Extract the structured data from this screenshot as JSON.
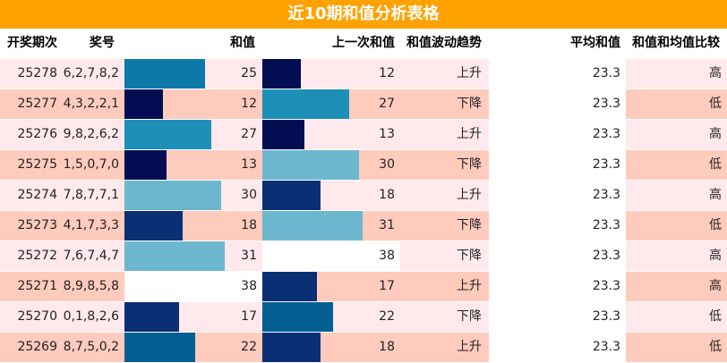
{
  "title": "近10期和值分析表格",
  "headers": {
    "issue": "开奖期次",
    "digits": "奖号",
    "sum": "和值",
    "prev_sum": "上一次和值",
    "trend": "和值波动趋势",
    "avg": "平均和值",
    "compare": "和值和均值比较"
  },
  "colors": {
    "title_bg": "#ffa200",
    "row_light": "#ffe9ec",
    "row_dark": "#ffcbbd",
    "blank": "#ffffff",
    "bar_scale": [
      "#030d52",
      "#0b2f74",
      "#035f92",
      "#0d79a8",
      "#1e8fb6",
      "#6db7ce"
    ]
  },
  "rows": [
    {
      "issue": "25278",
      "digits": "6,2,7,8,2",
      "sum": "25",
      "prev_sum": "12",
      "trend": "上升",
      "avg": "23.3",
      "compare": "高"
    },
    {
      "issue": "25277",
      "digits": "4,3,2,2,1",
      "sum": "12",
      "prev_sum": "27",
      "trend": "下降",
      "avg": "23.3",
      "compare": "低"
    },
    {
      "issue": "25276",
      "digits": "9,8,2,6,2",
      "sum": "27",
      "prev_sum": "13",
      "trend": "上升",
      "avg": "23.3",
      "compare": "高"
    },
    {
      "issue": "25275",
      "digits": "1,5,0,7,0",
      "sum": "13",
      "prev_sum": "30",
      "trend": "下降",
      "avg": "23.3",
      "compare": "低"
    },
    {
      "issue": "25274",
      "digits": "7,8,7,7,1",
      "sum": "30",
      "prev_sum": "18",
      "trend": "上升",
      "avg": "23.3",
      "compare": "高"
    },
    {
      "issue": "25273",
      "digits": "4,1,7,3,3",
      "sum": "18",
      "prev_sum": "31",
      "trend": "下降",
      "avg": "23.3",
      "compare": "低"
    },
    {
      "issue": "25272",
      "digits": "7,6,7,4,7",
      "sum": "31",
      "prev_sum": "38",
      "trend": "下降",
      "avg": "23.3",
      "compare": "高"
    },
    {
      "issue": "25271",
      "digits": "8,9,8,5,8",
      "sum": "38",
      "prev_sum": "17",
      "trend": "上升",
      "avg": "23.3",
      "compare": "高"
    },
    {
      "issue": "25270",
      "digits": "0,1,8,2,6",
      "sum": "17",
      "prev_sum": "22",
      "trend": "下降",
      "avg": "23.3",
      "compare": "低"
    },
    {
      "issue": "25269",
      "digits": "8,7,5,0,2",
      "sum": "22",
      "prev_sum": "18",
      "trend": "上升",
      "avg": "23.3",
      "compare": "低"
    }
  ]
}
